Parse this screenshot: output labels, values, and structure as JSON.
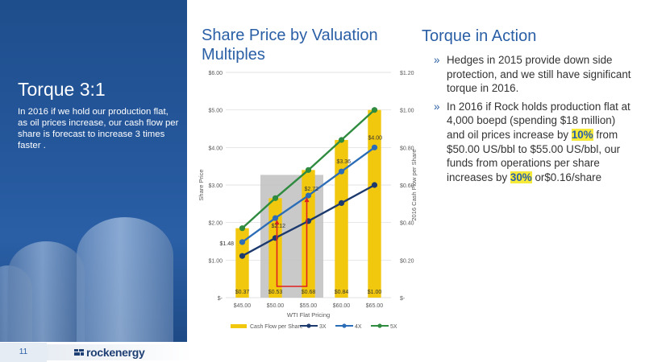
{
  "left": {
    "title": "Torque 3:1",
    "text": "In 2016  if we hold our production flat, as oil prices increase, our cash flow per share is forecast to increase 3 times faster ."
  },
  "footer": {
    "page": "11",
    "logo": "rockenergy"
  },
  "chart_heading": "Share Price by Valuation Multiples",
  "right": {
    "title": "Torque in Action",
    "bullet1": "Hedges in 2015 provide down side protection,  and we still have significant torque in 2016.",
    "bullet2_a": "In 2016 if Rock holds production flat at 4,000 boepd (spending $18 million) and oil prices increase by ",
    "bullet2_h1": "10%",
    "bullet2_b": " from $50.00 US/bbl to $55.00 US/bbl, our funds from operations per share increases by ",
    "bullet2_h2": "30%",
    "bullet2_c": " or$0.16/share"
  },
  "colors": {
    "bar": "#f2c80f",
    "x3": "#1c3a6e",
    "x4": "#2c6db7",
    "x5": "#2e8b3f",
    "shade": "#bfbfbf",
    "arrow": "#e02020"
  },
  "chart_data": {
    "type": "bar",
    "categories": [
      "$45.00",
      "$50.00",
      "$55.00",
      "$60.00",
      "$65.00"
    ],
    "xlabel": "WTI Flat Pricing",
    "ylabel": "Share Price",
    "y2label": "2016 Cash Flow per Share",
    "ylim": [
      0,
      6
    ],
    "y2lim": [
      0,
      1.2
    ],
    "yticks": [
      "$-",
      "$1.00",
      "$2.00",
      "$3.00",
      "$4.00",
      "$5.00",
      "$6.00"
    ],
    "y2ticks": [
      "$-",
      "$0.20",
      "$0.40",
      "$0.60",
      "$0.80",
      "$1.00",
      "$1.20"
    ],
    "bars": {
      "name": "Cash Flow per Share",
      "values": [
        0.37,
        0.53,
        0.68,
        0.84,
        1.0
      ],
      "labels": [
        "$0.37",
        "$0.53",
        "$0.68",
        "$0.84",
        "$1.00"
      ]
    },
    "series": [
      {
        "name": "3X",
        "values": [
          1.11,
          1.59,
          2.04,
          2.52,
          3.0
        ]
      },
      {
        "name": "4X",
        "values": [
          1.48,
          2.12,
          2.72,
          3.36,
          4.0
        ],
        "labels": [
          "$1.48",
          "$2.12",
          "$2.72",
          "$3.36",
          "$4.00"
        ]
      },
      {
        "name": "5X",
        "values": [
          1.85,
          2.65,
          3.4,
          4.2,
          5.0
        ]
      }
    ],
    "legend_position": "bottom"
  }
}
